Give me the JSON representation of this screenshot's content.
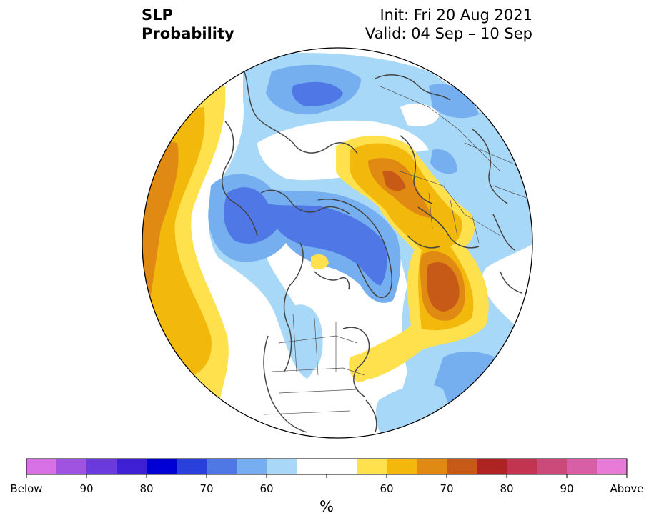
{
  "title": {
    "line1": "SLP",
    "line2": "Probability"
  },
  "init": {
    "label": "Init: Fri 20 Aug 2021"
  },
  "valid": {
    "label": "Valid: 04 Sep – 10 Sep"
  },
  "colorbar": {
    "unit": "%",
    "colors": [
      "#d672e6",
      "#a052e0",
      "#6a3adc",
      "#3e1fd4",
      "#0000d4",
      "#2a40dd",
      "#4f78e6",
      "#76aff0",
      "#a8d8f8",
      "#ffffff",
      "#ffffff",
      "#ffe14d",
      "#f2b90c",
      "#e08a14",
      "#c85a17",
      "#b02323",
      "#c2344f",
      "#cc4a7a",
      "#d85ea6",
      "#e87ad8"
    ],
    "ticks": [
      {
        "index": 0,
        "label": "Below"
      },
      {
        "index": 2,
        "label": "90"
      },
      {
        "index": 4,
        "label": "80"
      },
      {
        "index": 6,
        "label": "70"
      },
      {
        "index": 8,
        "label": "60"
      },
      {
        "index": 10,
        "label": ""
      },
      {
        "index": 12,
        "label": "60"
      },
      {
        "index": 14,
        "label": "70"
      },
      {
        "index": 16,
        "label": "80"
      },
      {
        "index": 18,
        "label": "90"
      },
      {
        "index": 20,
        "label": "Above"
      }
    ]
  },
  "map_colors": {
    "blue_light": "#a8d8f8",
    "blue_mid": "#76aff0",
    "blue_strong": "#4f78e6",
    "blue_deep": "#2a40dd",
    "yellow": "#ffe14d",
    "gold": "#f2b90c",
    "orange": "#e08a14",
    "burnt": "#c85a17",
    "coast": "#444444",
    "border": "#555555"
  }
}
